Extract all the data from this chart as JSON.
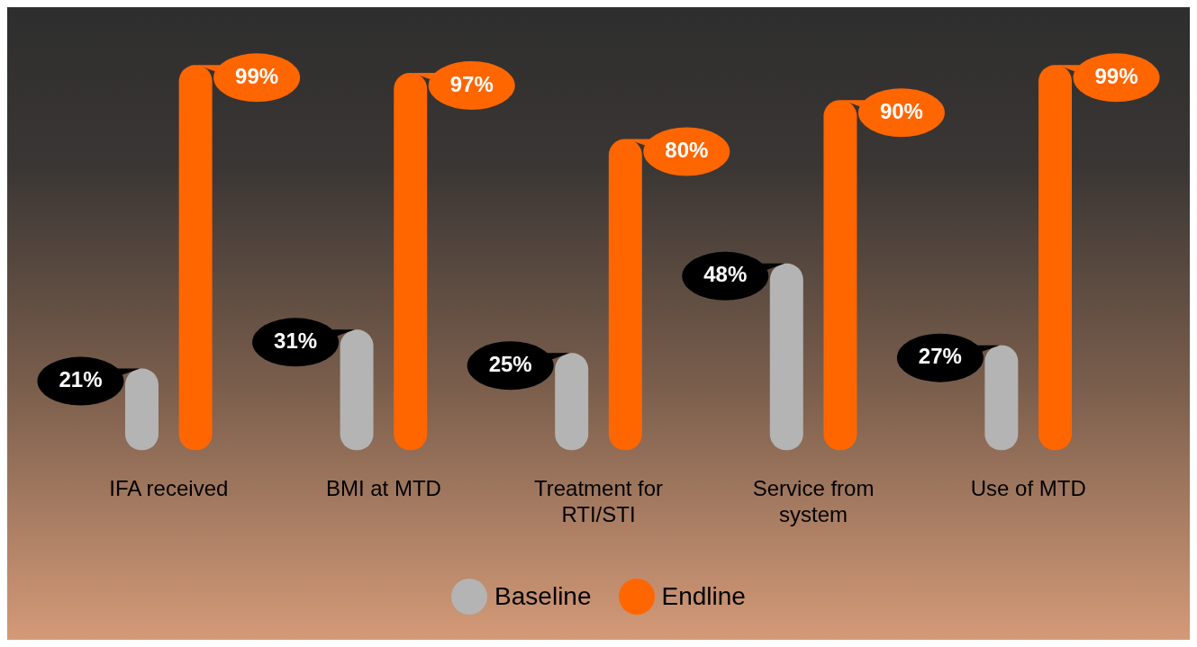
{
  "chart_data": {
    "type": "bar",
    "categories": [
      "IFA received",
      "BMI at MTD",
      "Treatment for RTI/STI",
      "Service from system",
      "Use of MTD"
    ],
    "series": [
      {
        "name": "Baseline",
        "color": "#b4b4b4",
        "values": [
          21,
          31,
          25,
          48,
          27
        ],
        "value_labels": [
          "21%",
          "31%",
          "25%",
          "48%",
          "27%"
        ]
      },
      {
        "name": "Endline",
        "color": "#ff6600",
        "values": [
          99,
          97,
          80,
          90,
          99
        ],
        "value_labels": [
          "99%",
          "97%",
          "80%",
          "90%",
          "99%"
        ]
      }
    ],
    "tick_labels": "x",
    "grid": false,
    "legend": "bottom"
  }
}
